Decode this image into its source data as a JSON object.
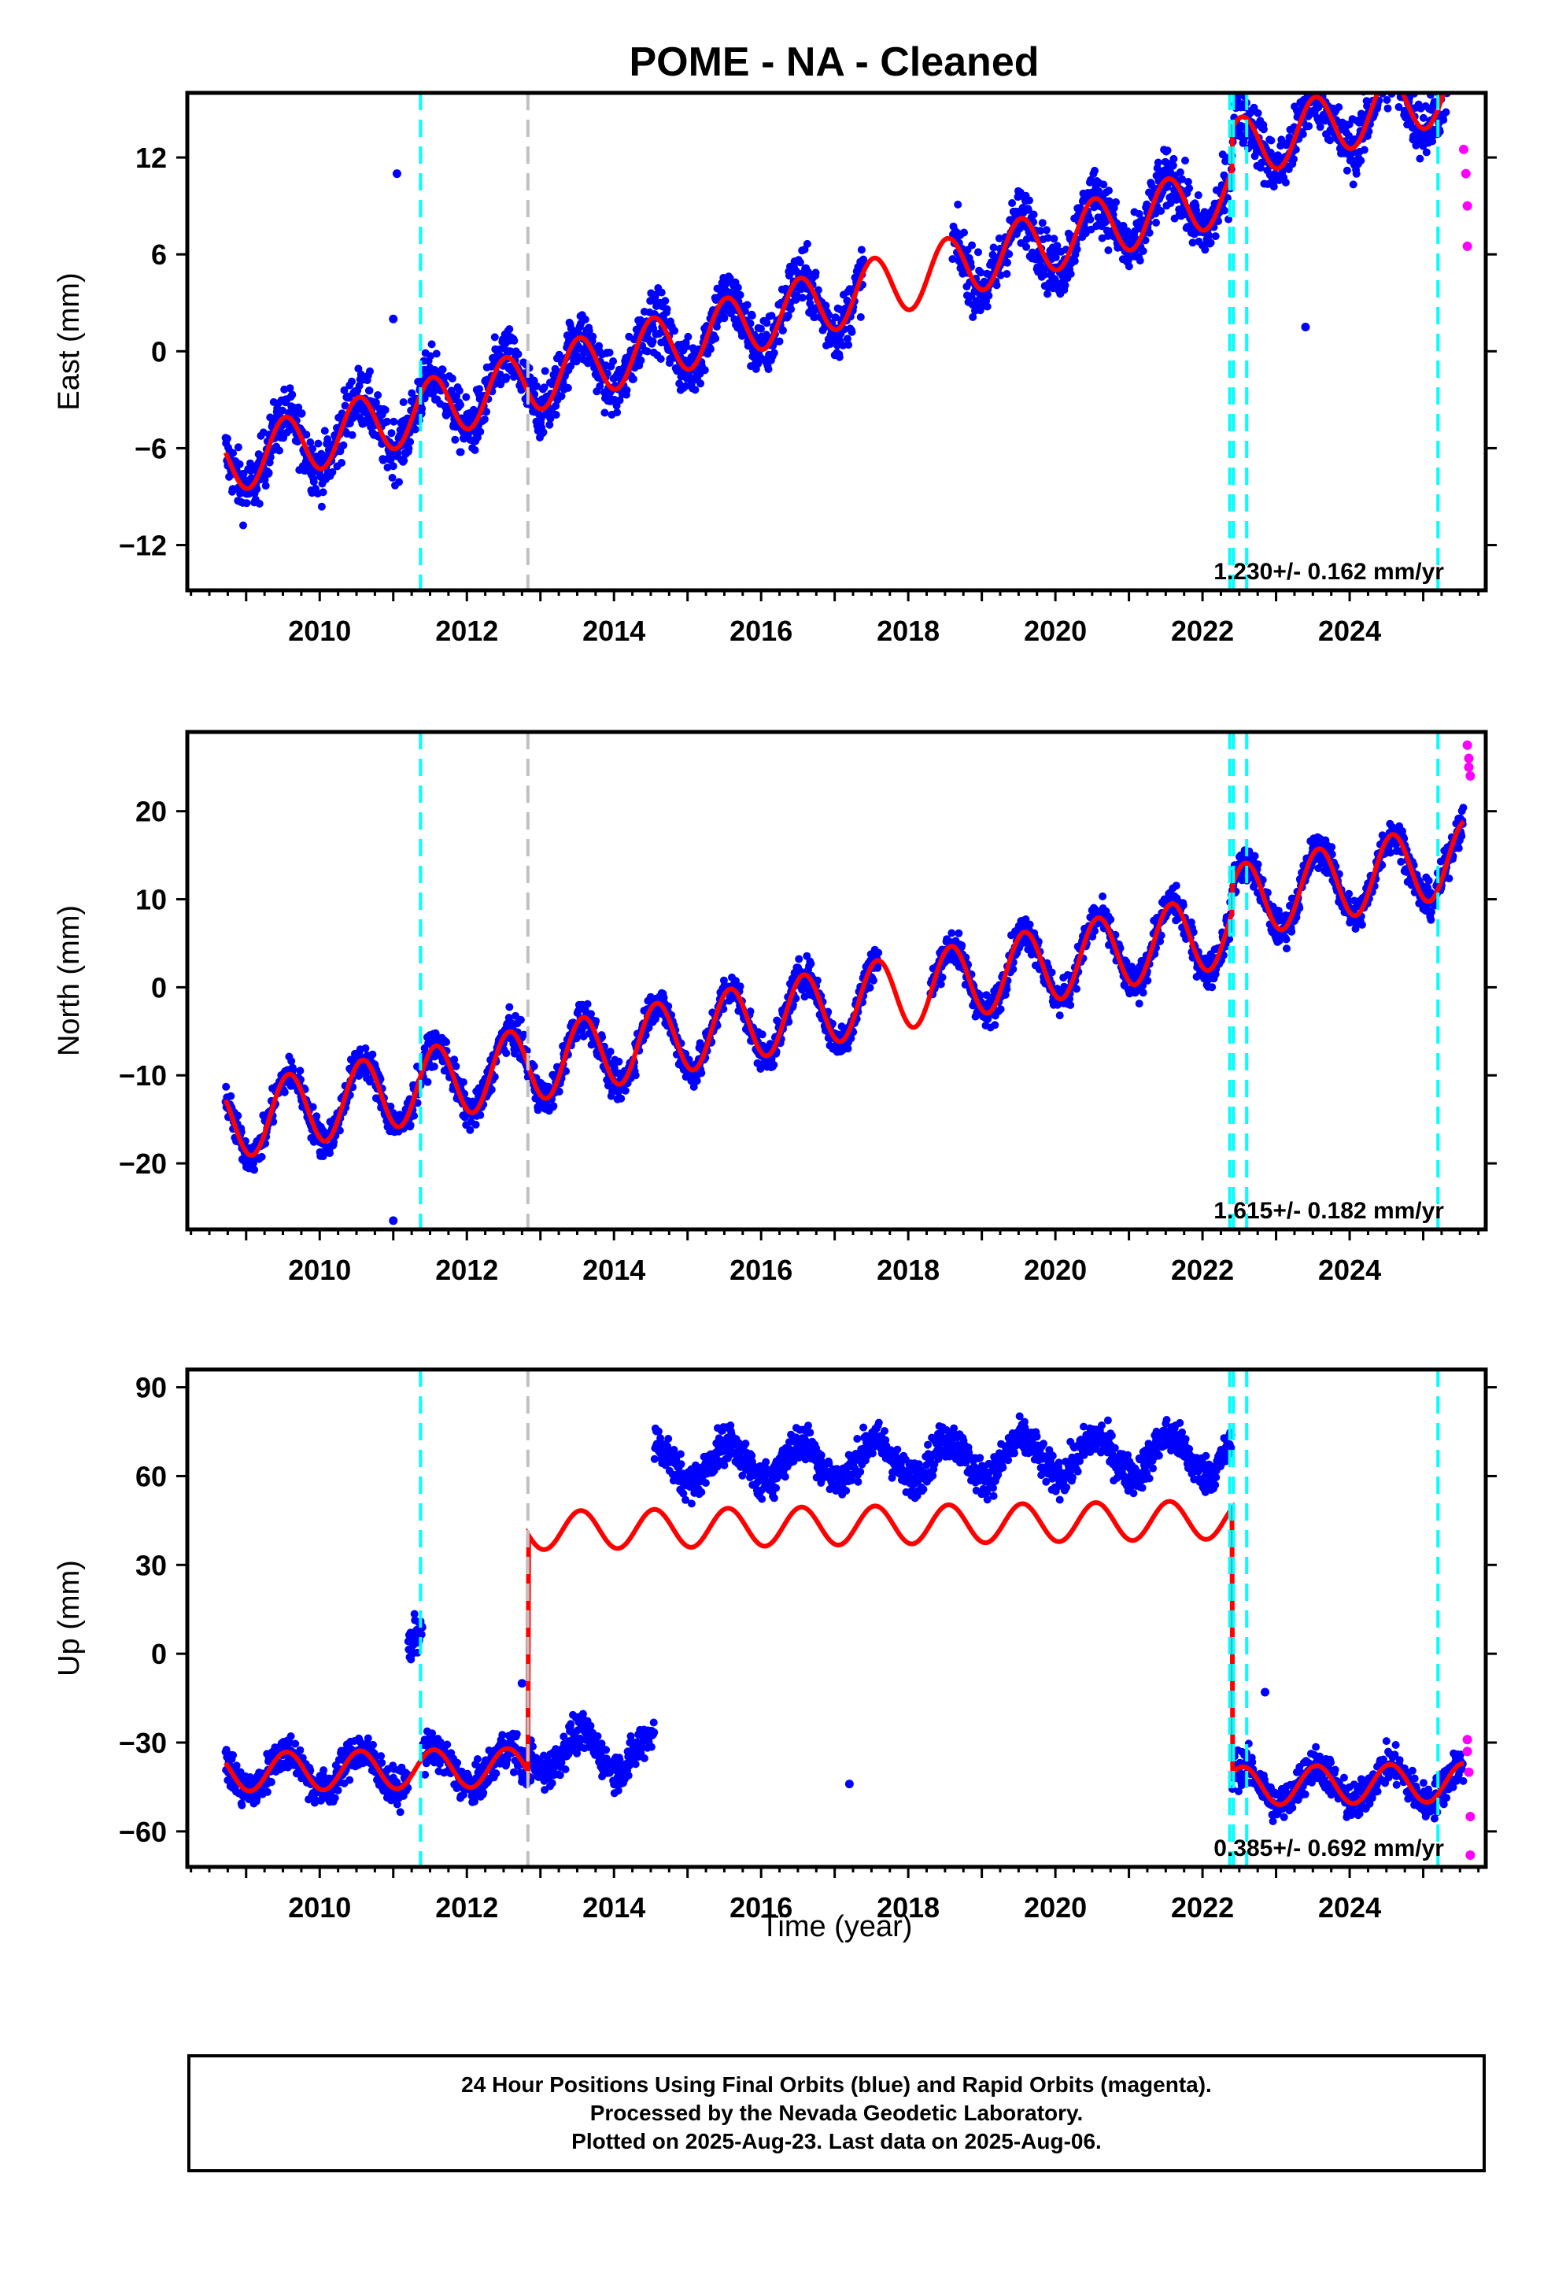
{
  "chart_data": {
    "type": "scatter",
    "title": "POME  - NA - Cleaned",
    "xlabel": "Time (year)",
    "xlim": [
      2008.2,
      2025.85
    ],
    "x_ticks": [
      2010,
      2012,
      2014,
      2016,
      2018,
      2020,
      2022,
      2024
    ],
    "x_tick_labels": [
      "2010",
      "2012",
      "2014",
      "2016",
      "2018",
      "2020",
      "2022",
      "2024"
    ],
    "colors": {
      "final_orbits": "#0000ff",
      "rapid_orbits": "#ff00ff",
      "model_fit": "#ff0000",
      "antenna_offset": "#00ffff",
      "equipment_change": "#c0c0c0"
    },
    "event_lines": {
      "cyan": [
        2011.37,
        2022.37,
        2022.42,
        2022.6,
        2025.2
      ],
      "gray": [
        2012.83
      ]
    },
    "panels": [
      {
        "ylabel": "East (mm)",
        "ylim": [
          -14.8,
          16
        ],
        "y_ticks": [
          -12,
          -6,
          0,
          6,
          12
        ],
        "y_tick_labels": [
          "−12",
          "−6",
          "0",
          "6",
          "12"
        ],
        "rate_label": "1.230+/- 0.162 mm/yr",
        "trend": {
          "base": -7.0,
          "rate": 1.23,
          "start": 2008.7
        },
        "seasonal": {
          "amp": 1.9,
          "phase": 0.28
        },
        "offsets": [
          {
            "at": 2022.4,
            "jump": 2.6
          }
        ],
        "scatter": 1.3,
        "gap": [
          2017.4,
          2018.6
        ],
        "outliers": [
          {
            "x": 2011.05,
            "y": 11
          },
          {
            "x": 2011.0,
            "y": 2
          },
          {
            "x": 2023.4,
            "y": 1.5
          }
        ],
        "rapid": [
          {
            "x": 2025.55,
            "y": 12.5
          },
          {
            "x": 2025.58,
            "y": 11
          },
          {
            "x": 2025.6,
            "y": 9
          },
          {
            "x": 2025.6,
            "y": 6.5
          }
        ]
      },
      {
        "ylabel": "North (mm)",
        "ylim": [
          -27.5,
          29
        ],
        "y_ticks": [
          -20,
          -10,
          0,
          10,
          20
        ],
        "y_tick_labels": [
          "−20",
          "−10",
          "0",
          "10",
          "20"
        ],
        "rate_label": "1.615+/- 0.182 mm/yr",
        "trend": {
          "base": -15.5,
          "rate": 1.615,
          "start": 2008.7
        },
        "seasonal": {
          "amp": 4.2,
          "phase": 0.33
        },
        "offsets": [
          {
            "at": 2022.4,
            "jump": 3.0
          }
        ],
        "scatter": 1.4,
        "gap": [
          2017.6,
          2018.3
        ],
        "outliers": [
          {
            "x": 2011.0,
            "y": -26.5
          }
        ],
        "rapid": [
          {
            "x": 2025.6,
            "y": 27.5
          },
          {
            "x": 2025.62,
            "y": 26
          },
          {
            "x": 2025.62,
            "y": 25
          },
          {
            "x": 2025.64,
            "y": 24
          }
        ]
      },
      {
        "ylabel": "Up (mm)",
        "ylim": [
          -72,
          96
        ],
        "y_ticks": [
          -60,
          -30,
          0,
          30,
          60,
          90
        ],
        "y_tick_labels": [
          "−60",
          "−30",
          "0",
          "30",
          "60",
          "90"
        ],
        "rate_label": "0.385+/- 0.692 mm/yr",
        "trend": {
          "base": -40,
          "rate": 0.385,
          "start": 2008.7
        },
        "seasonal": {
          "amp": 6.5,
          "phase": 0.3
        },
        "offsets": [
          {
            "at": 2012.83,
            "jump": 80
          },
          {
            "at": 2022.4,
            "jump": -90
          }
        ],
        "scatter": 4.5,
        "gap": [
          2017.6,
          2017.6
        ],
        "outliers": [
          {
            "x": 2017.2,
            "y": -44
          },
          {
            "x": 2022.85,
            "y": -13
          },
          {
            "x": 2012.75,
            "y": -10
          }
        ],
        "rapid": [
          {
            "x": 2025.6,
            "y": -29
          },
          {
            "x": 2025.6,
            "y": -33
          },
          {
            "x": 2025.62,
            "y": -40
          },
          {
            "x": 2025.64,
            "y": -55
          },
          {
            "x": 2025.64,
            "y": -68
          }
        ]
      }
    ]
  },
  "footer": {
    "line1": "24 Hour Positions Using Final Orbits (blue) and Rapid Orbits (magenta).",
    "line2": "Processed by the Nevada Geodetic Laboratory.",
    "line3": "Plotted on 2025-Aug-23. Last data on 2025-Aug-06."
  }
}
